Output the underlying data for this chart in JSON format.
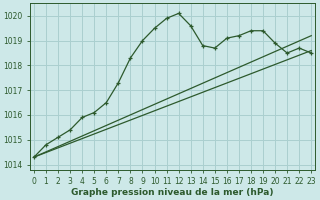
{
  "line1": {
    "x": [
      0,
      1,
      2,
      3,
      4,
      5,
      6,
      7,
      8,
      9,
      10,
      11,
      12,
      13,
      14,
      15,
      16,
      17,
      18,
      19,
      20,
      21,
      22,
      23
    ],
    "y": [
      1014.3,
      1014.8,
      1015.1,
      1015.4,
      1015.9,
      1016.1,
      1016.5,
      1017.3,
      1018.3,
      1019.0,
      1019.5,
      1019.9,
      1020.1,
      1019.6,
      1018.8,
      1018.7,
      1019.1,
      1019.2,
      1019.4,
      1019.4,
      1018.9,
      1018.5,
      1018.7,
      1018.5
    ],
    "marker": true
  },
  "line2": {
    "x": [
      0,
      23
    ],
    "y": [
      1014.3,
      1019.2
    ],
    "marker": false
  },
  "line3": {
    "x": [
      0,
      23
    ],
    "y": [
      1014.3,
      1018.6
    ],
    "marker": false
  },
  "bg_color": "#cde8e8",
  "grid_color": "#aacfcf",
  "line_color": "#2d5a2d",
  "xlabel": "Graphe pression niveau de la mer (hPa)",
  "ylim": [
    1013.8,
    1020.5
  ],
  "xlim": [
    -0.3,
    23.3
  ],
  "yticks": [
    1014,
    1015,
    1016,
    1017,
    1018,
    1019,
    1020
  ],
  "xticks": [
    0,
    1,
    2,
    3,
    4,
    5,
    6,
    7,
    8,
    9,
    10,
    11,
    12,
    13,
    14,
    15,
    16,
    17,
    18,
    19,
    20,
    21,
    22,
    23
  ],
  "xlabel_fontsize": 6.5,
  "tick_fontsize": 5.5
}
